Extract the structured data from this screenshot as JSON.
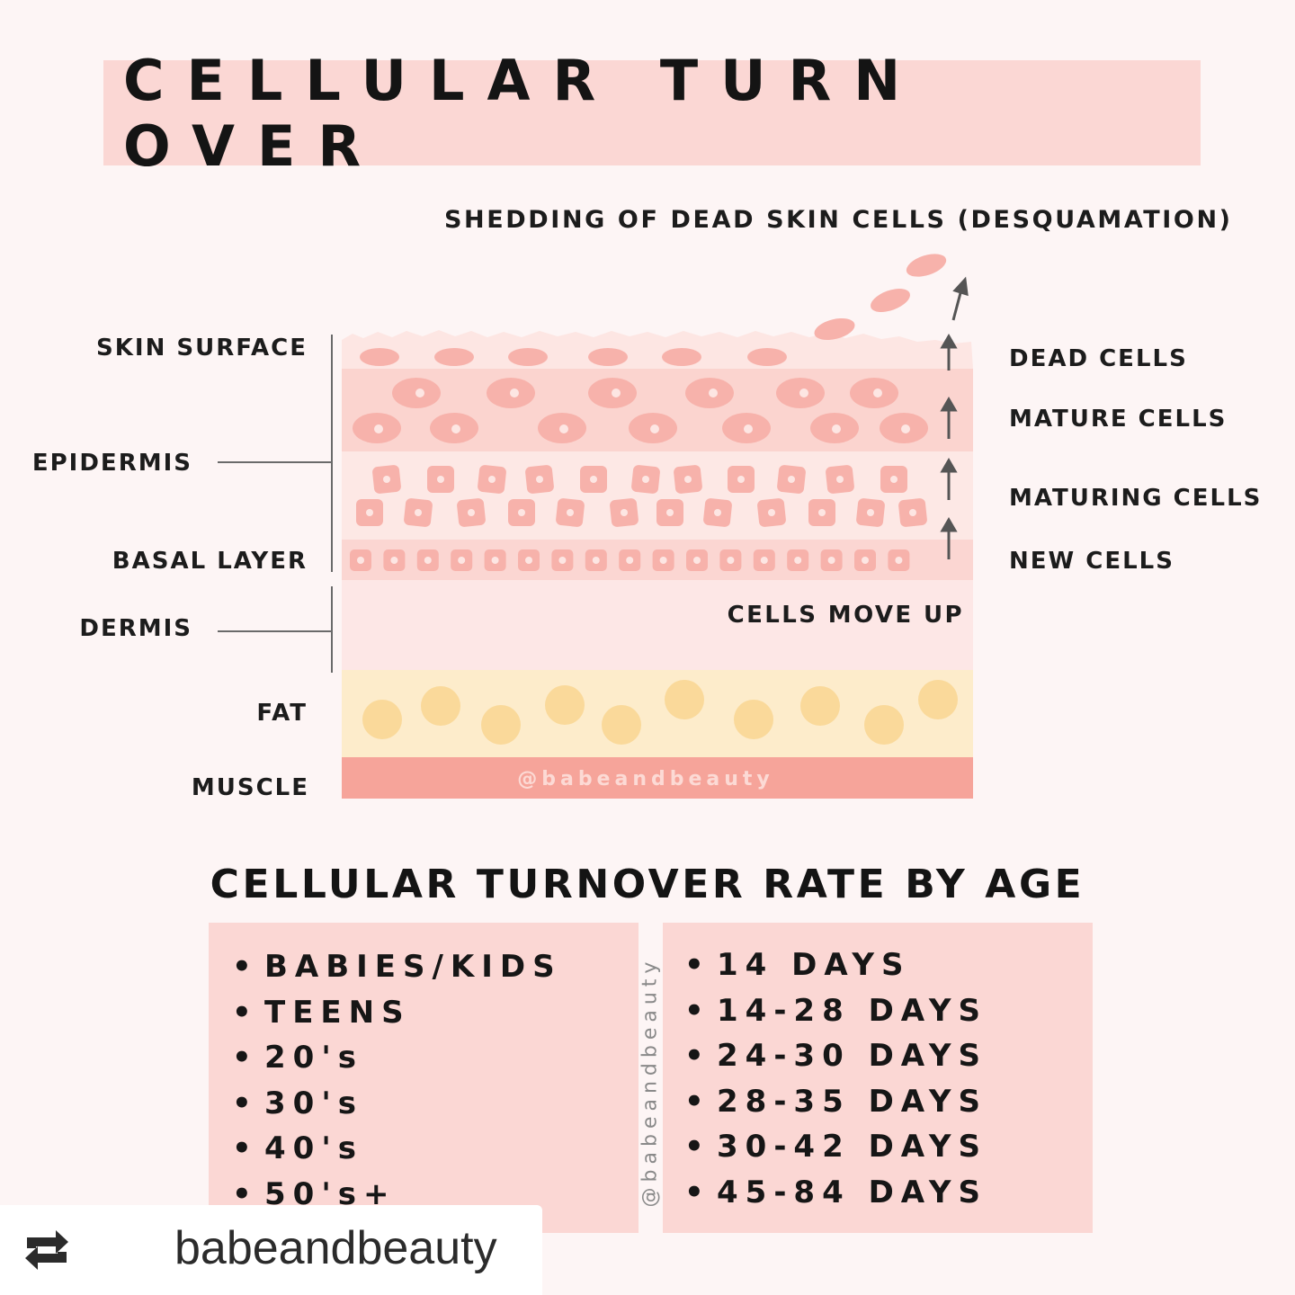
{
  "title": "CELLULAR TURN OVER",
  "diagram": {
    "shedding_label": "SHEDDING OF DEAD SKIN CELLS (DESQUAMATION)",
    "left_labels": {
      "skin_surface": "SKIN SURFACE",
      "epidermis": "EPIDERMIS",
      "basal_layer": "BASAL LAYER",
      "dermis": "DERMIS",
      "fat": "FAT",
      "muscle": "MUSCLE"
    },
    "right_labels": {
      "dead_cells": "DEAD CELLS",
      "mature_cells": "MATURE CELLS",
      "maturing_cells": "MATURING CELLS",
      "new_cells": "NEW CELLS"
    },
    "cells_move_up": "CELLS MOVE UP",
    "watermark": "@babeandbeauty",
    "colors": {
      "dead_layer": "#fde6e3",
      "mature_layer": "#fbd4cf",
      "maturing_layer": "#fde8e5",
      "basal_layer": "#fbd6d2",
      "dermis_layer": "#fde7e6",
      "fat_layer": "#fdeccb",
      "fat_cell": "#fad99a",
      "muscle_layer": "#f6a49a",
      "cell": "#f7b2ab",
      "arrow": "#555555"
    }
  },
  "rate_section": {
    "title": "CELLULAR TURNOVER RATE BY AGE",
    "ages": [
      "BABIES/KIDS",
      "TEENS",
      "20's",
      "30's",
      "40's",
      "50's+"
    ],
    "days": [
      "14 DAYS",
      "14-28 DAYS",
      "24-30 DAYS",
      "28-35 DAYS",
      "30-42 DAYS",
      "45-84 DAYS"
    ],
    "watermark": "@babeandbeauty",
    "bullet": "•"
  },
  "repost": {
    "icon": "repost-icon",
    "username": "babeandbeauty"
  }
}
